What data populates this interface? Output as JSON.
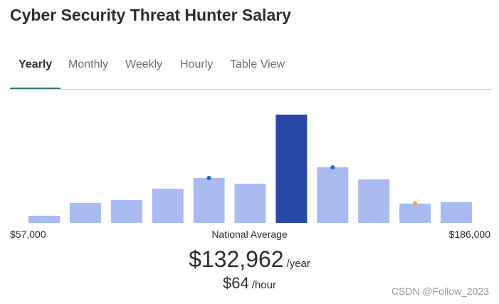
{
  "page": {
    "title": "Cyber Security Threat Hunter Salary"
  },
  "tabs": [
    {
      "label": "Yearly",
      "active": true
    },
    {
      "label": "Monthly",
      "active": false
    },
    {
      "label": "Weekly",
      "active": false
    },
    {
      "label": "Hourly",
      "active": false
    },
    {
      "label": "Table View",
      "active": false
    }
  ],
  "colors": {
    "accent": "#2e8163",
    "bar": "#aabbf2",
    "bar_highlight": "#2846a5",
    "marker_blue": "#1967d2",
    "marker_orange": "#f5a14a"
  },
  "chart_data": {
    "type": "bar",
    "values": [
      10,
      28,
      32,
      48,
      63,
      55,
      152,
      78,
      61,
      27,
      29
    ],
    "highlight_index": 6,
    "markers": [
      {
        "bar": 4,
        "color": "blue"
      },
      {
        "bar": 7,
        "color": "blue"
      },
      {
        "bar": 9,
        "color": "orange"
      }
    ]
  },
  "range": {
    "min": "$57,000",
    "max": "$186,000",
    "center_label": "National Average"
  },
  "average": {
    "yearly_value": "$132,962",
    "yearly_unit": "/year",
    "hourly_value": "$64",
    "hourly_unit": "/hour"
  },
  "watermark": "CSDN @Follow_2023"
}
